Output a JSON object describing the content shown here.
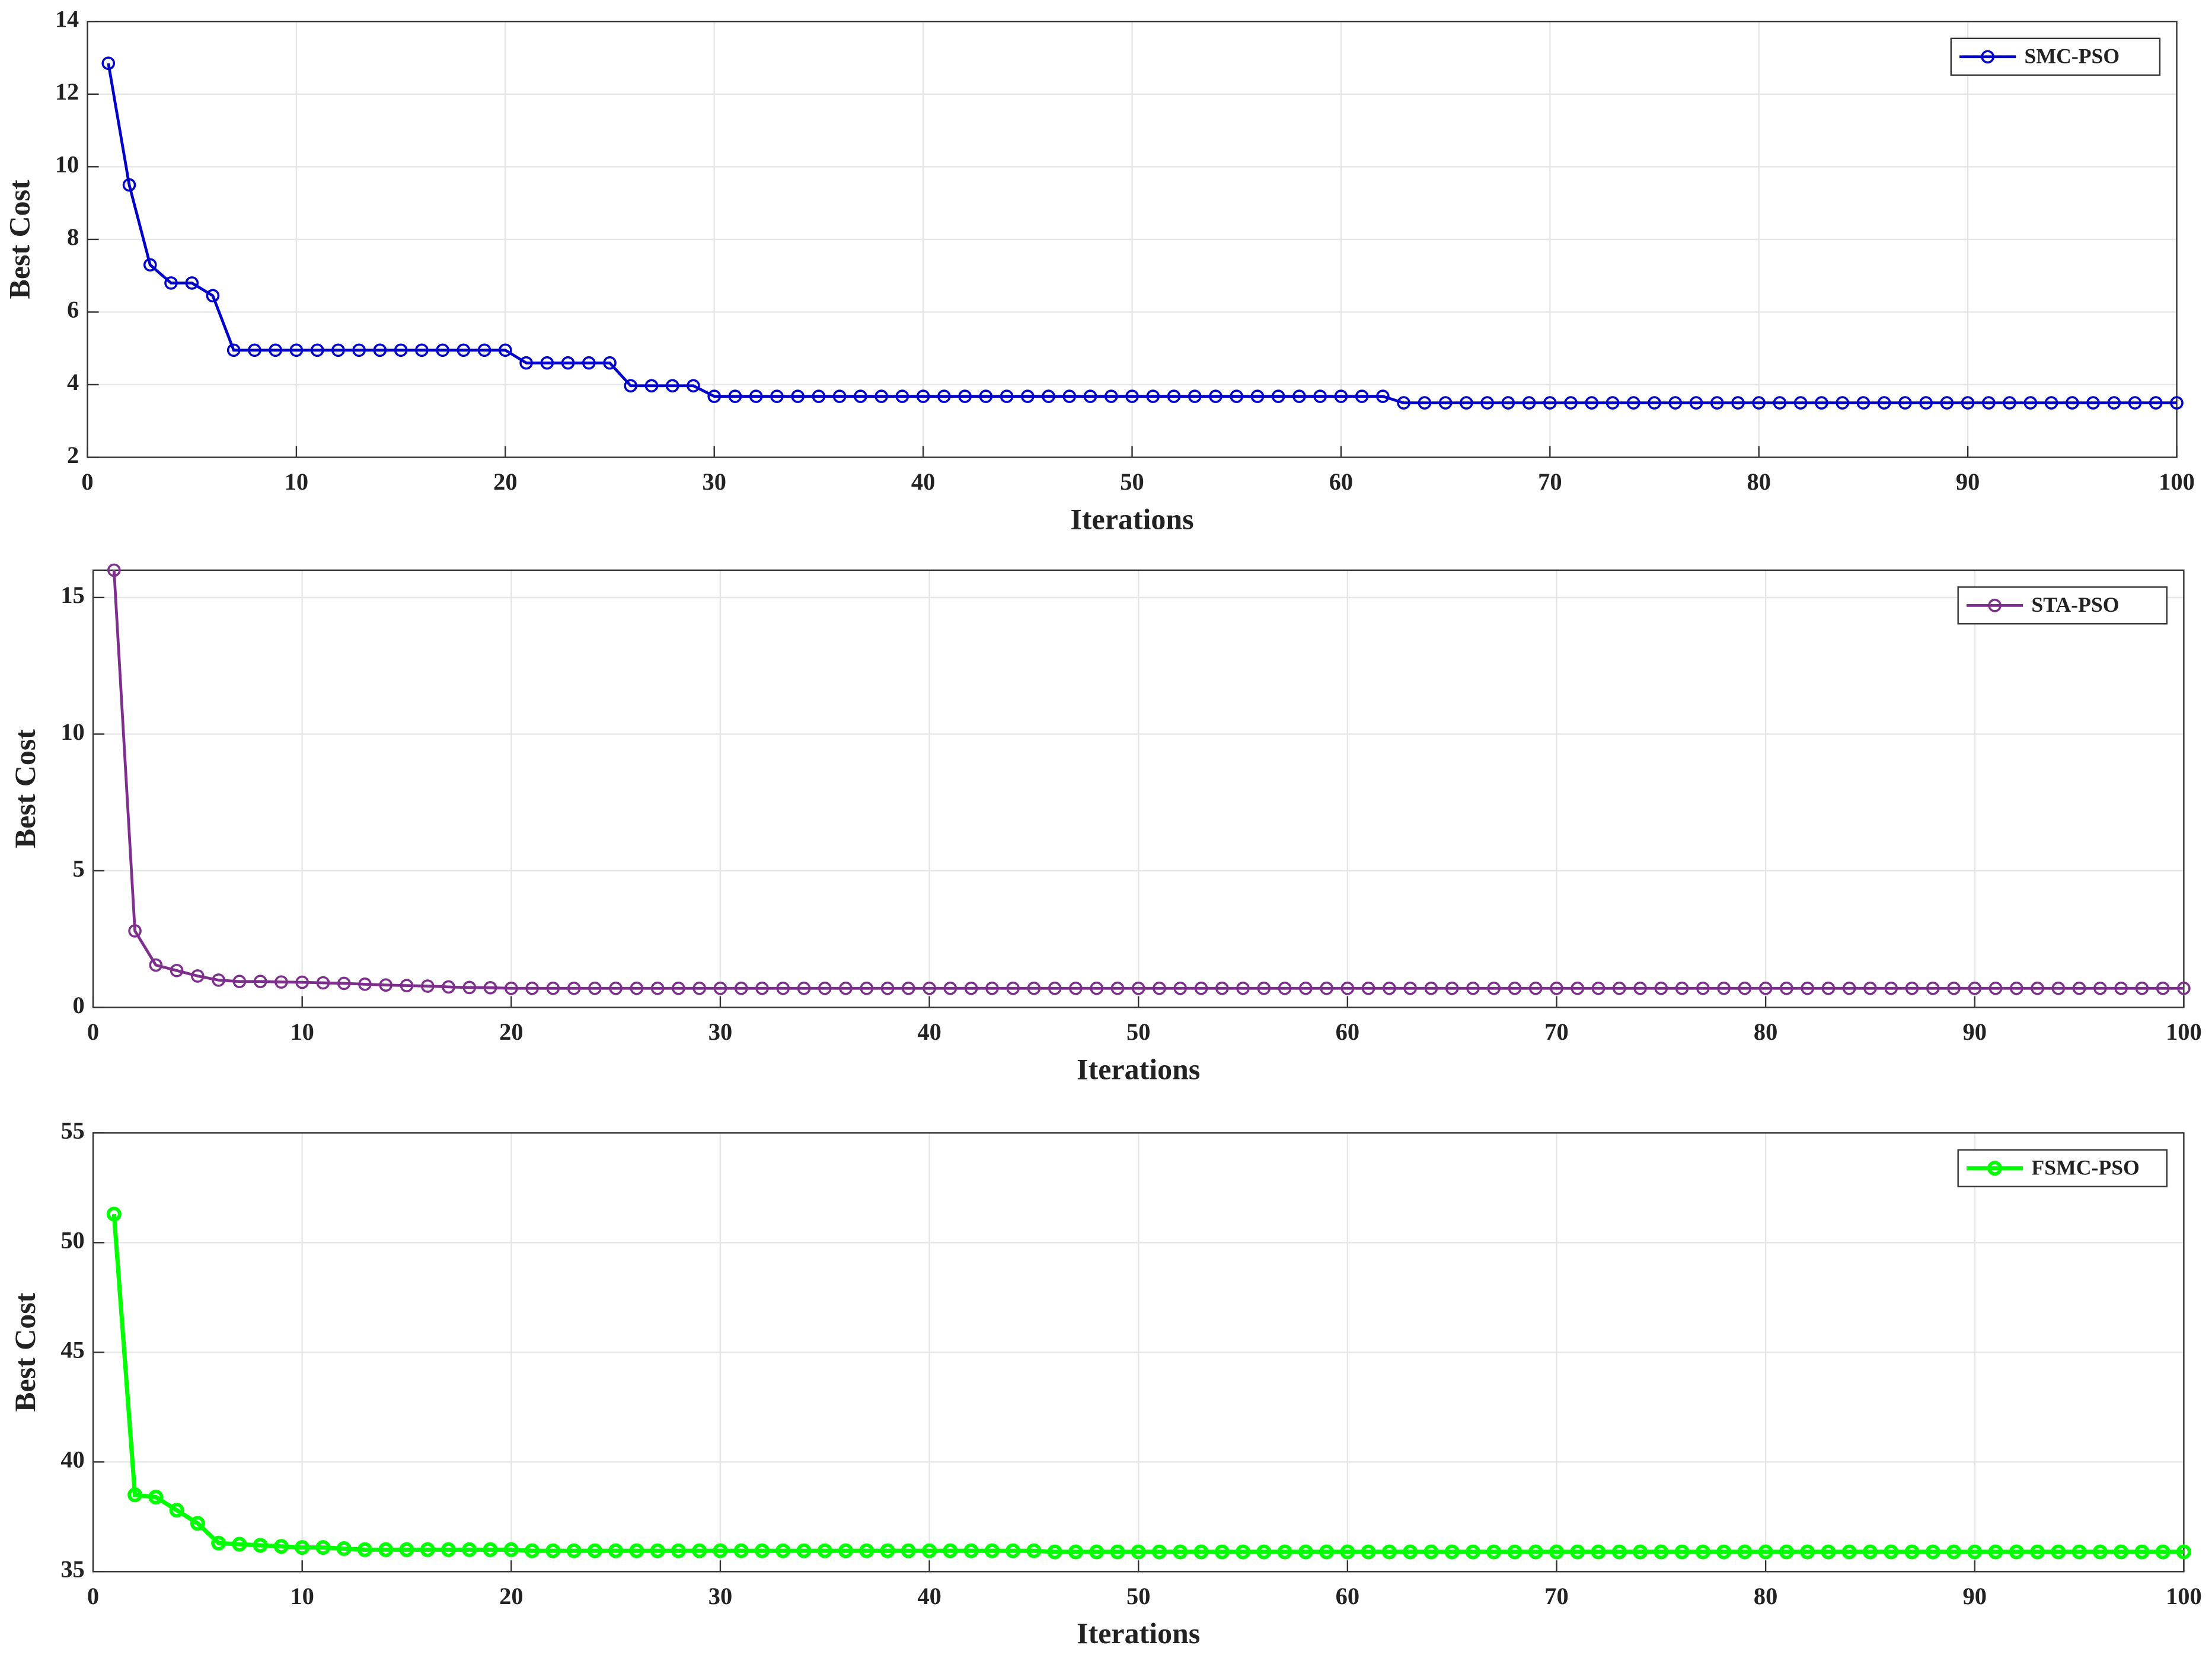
{
  "chart_data": [
    {
      "type": "line",
      "xlabel": "Iterations",
      "ylabel": "Best Cost",
      "x": [
        1,
        2,
        3,
        4,
        5,
        6,
        7,
        8,
        9,
        10,
        11,
        12,
        13,
        14,
        15,
        16,
        17,
        18,
        19,
        20,
        21,
        22,
        23,
        24,
        25,
        26,
        27,
        28,
        29,
        30,
        31,
        32,
        33,
        34,
        35,
        36,
        37,
        38,
        39,
        40,
        41,
        42,
        43,
        44,
        45,
        46,
        47,
        48,
        49,
        50,
        51,
        52,
        53,
        54,
        55,
        56,
        57,
        58,
        59,
        60,
        61,
        62,
        63,
        64,
        65,
        66,
        67,
        68,
        69,
        70,
        71,
        72,
        73,
        74,
        75,
        76,
        77,
        78,
        79,
        80,
        81,
        82,
        83,
        84,
        85,
        86,
        87,
        88,
        89,
        90,
        91,
        92,
        93,
        94,
        95,
        96,
        97,
        98,
        99,
        100
      ],
      "series": [
        {
          "name": "SMC-PSO",
          "color": "#0000cc",
          "values": [
            12.85,
            9.5,
            7.3,
            6.8,
            6.8,
            6.45,
            4.95,
            4.95,
            4.95,
            4.95,
            4.95,
            4.95,
            4.95,
            4.95,
            4.95,
            4.95,
            4.95,
            4.95,
            4.95,
            4.95,
            4.6,
            4.6,
            4.6,
            4.6,
            4.6,
            3.97,
            3.97,
            3.97,
            3.97,
            3.68,
            3.68,
            3.68,
            3.68,
            3.68,
            3.68,
            3.68,
            3.68,
            3.68,
            3.68,
            3.68,
            3.68,
            3.68,
            3.68,
            3.68,
            3.68,
            3.68,
            3.68,
            3.68,
            3.68,
            3.68,
            3.68,
            3.68,
            3.68,
            3.68,
            3.68,
            3.68,
            3.68,
            3.68,
            3.68,
            3.68,
            3.68,
            3.68,
            3.5,
            3.5,
            3.5,
            3.5,
            3.5,
            3.5,
            3.5,
            3.5,
            3.5,
            3.5,
            3.5,
            3.5,
            3.5,
            3.5,
            3.5,
            3.5,
            3.5,
            3.5,
            3.5,
            3.5,
            3.5,
            3.5,
            3.5,
            3.5,
            3.5,
            3.5,
            3.5,
            3.5,
            3.5,
            3.5,
            3.5,
            3.5,
            3.5,
            3.5,
            3.5,
            3.5,
            3.5,
            3.5
          ]
        }
      ],
      "xlim": [
        0,
        100
      ],
      "xticks": [
        0,
        10,
        20,
        30,
        40,
        50,
        60,
        70,
        80,
        90,
        100
      ],
      "ylim": [
        2,
        14
      ],
      "yticks": [
        2,
        4,
        6,
        8,
        10,
        12,
        14
      ],
      "grid": true,
      "legend": "northeast"
    },
    {
      "type": "line",
      "xlabel": "Iterations",
      "ylabel": "Best Cost",
      "x": [
        1,
        2,
        3,
        4,
        5,
        6,
        7,
        8,
        9,
        10,
        11,
        12,
        13,
        14,
        15,
        16,
        17,
        18,
        19,
        20,
        21,
        22,
        23,
        24,
        25,
        26,
        27,
        28,
        29,
        30,
        31,
        32,
        33,
        34,
        35,
        36,
        37,
        38,
        39,
        40,
        41,
        42,
        43,
        44,
        45,
        46,
        47,
        48,
        49,
        50,
        51,
        52,
        53,
        54,
        55,
        56,
        57,
        58,
        59,
        60,
        61,
        62,
        63,
        64,
        65,
        66,
        67,
        68,
        69,
        70,
        71,
        72,
        73,
        74,
        75,
        76,
        77,
        78,
        79,
        80,
        81,
        82,
        83,
        84,
        85,
        86,
        87,
        88,
        89,
        90,
        91,
        92,
        93,
        94,
        95,
        96,
        97,
        98,
        99,
        100
      ],
      "series": [
        {
          "name": "STA-PSO",
          "color": "#7e2f8e",
          "values": [
            16,
            2.8,
            1.55,
            1.35,
            1.15,
            1.0,
            0.95,
            0.95,
            0.93,
            0.92,
            0.9,
            0.88,
            0.85,
            0.82,
            0.8,
            0.78,
            0.75,
            0.73,
            0.72,
            0.7,
            0.7,
            0.7,
            0.7,
            0.7,
            0.7,
            0.7,
            0.7,
            0.7,
            0.7,
            0.7,
            0.7,
            0.7,
            0.7,
            0.7,
            0.7,
            0.7,
            0.7,
            0.7,
            0.7,
            0.7,
            0.7,
            0.7,
            0.7,
            0.7,
            0.7,
            0.7,
            0.7,
            0.7,
            0.7,
            0.7,
            0.7,
            0.7,
            0.7,
            0.7,
            0.7,
            0.7,
            0.7,
            0.7,
            0.7,
            0.7,
            0.7,
            0.7,
            0.7,
            0.7,
            0.7,
            0.7,
            0.7,
            0.7,
            0.7,
            0.7,
            0.7,
            0.7,
            0.7,
            0.7,
            0.7,
            0.7,
            0.7,
            0.7,
            0.7,
            0.7,
            0.7,
            0.7,
            0.7,
            0.7,
            0.7,
            0.7,
            0.7,
            0.7,
            0.7,
            0.7,
            0.7,
            0.7,
            0.7,
            0.7,
            0.7,
            0.7,
            0.7,
            0.7,
            0.7,
            0.7
          ]
        }
      ],
      "xlim": [
        0,
        100
      ],
      "xticks": [
        0,
        10,
        20,
        30,
        40,
        50,
        60,
        70,
        80,
        90,
        100
      ],
      "ylim": [
        0,
        16
      ],
      "yticks": [
        0,
        5,
        10,
        15
      ],
      "grid": true,
      "legend": "northeast"
    },
    {
      "type": "line",
      "xlabel": "Iterations",
      "ylabel": "Best Cost",
      "x": [
        1,
        2,
        3,
        4,
        5,
        6,
        7,
        8,
        9,
        10,
        11,
        12,
        13,
        14,
        15,
        16,
        17,
        18,
        19,
        20,
        21,
        22,
        23,
        24,
        25,
        26,
        27,
        28,
        29,
        30,
        31,
        32,
        33,
        34,
        35,
        36,
        37,
        38,
        39,
        40,
        41,
        42,
        43,
        44,
        45,
        46,
        47,
        48,
        49,
        50,
        51,
        52,
        53,
        54,
        55,
        56,
        57,
        58,
        59,
        60,
        61,
        62,
        63,
        64,
        65,
        66,
        67,
        68,
        69,
        70,
        71,
        72,
        73,
        74,
        75,
        76,
        77,
        78,
        79,
        80,
        81,
        82,
        83,
        84,
        85,
        86,
        87,
        88,
        89,
        90,
        91,
        92,
        93,
        94,
        95,
        96,
        97,
        98,
        99,
        100
      ],
      "series": [
        {
          "name": "FSMC-PSO",
          "color": "#00ff00",
          "values": [
            51.3,
            38.5,
            38.4,
            37.8,
            37.2,
            36.3,
            36.25,
            36.2,
            36.15,
            36.1,
            36.1,
            36.05,
            36.0,
            36.0,
            36.0,
            36.0,
            36.0,
            36.0,
            36.0,
            36.0,
            35.95,
            35.95,
            35.95,
            35.95,
            35.95,
            35.95,
            35.95,
            35.95,
            35.95,
            35.95,
            35.95,
            35.95,
            35.95,
            35.95,
            35.95,
            35.95,
            35.95,
            35.95,
            35.95,
            35.95,
            35.95,
            35.95,
            35.95,
            35.95,
            35.95,
            35.9,
            35.9,
            35.9,
            35.9,
            35.9,
            35.9,
            35.9,
            35.9,
            35.9,
            35.9,
            35.9,
            35.9,
            35.9,
            35.9,
            35.9,
            35.9,
            35.9,
            35.9,
            35.9,
            35.9,
            35.9,
            35.9,
            35.9,
            35.9,
            35.9,
            35.9,
            35.9,
            35.9,
            35.9,
            35.9,
            35.9,
            35.9,
            35.9,
            35.9,
            35.9,
            35.9,
            35.9,
            35.9,
            35.9,
            35.9,
            35.9,
            35.9,
            35.9,
            35.9,
            35.9,
            35.9,
            35.9,
            35.9,
            35.9,
            35.9,
            35.9,
            35.9,
            35.9,
            35.9,
            35.9
          ]
        }
      ],
      "xlim": [
        0,
        100
      ],
      "xticks": [
        0,
        10,
        20,
        30,
        40,
        50,
        60,
        70,
        80,
        90,
        100
      ],
      "ylim": [
        35,
        55
      ],
      "yticks": [
        35,
        40,
        45,
        50,
        55
      ],
      "grid": true,
      "legend": "northeast"
    }
  ]
}
